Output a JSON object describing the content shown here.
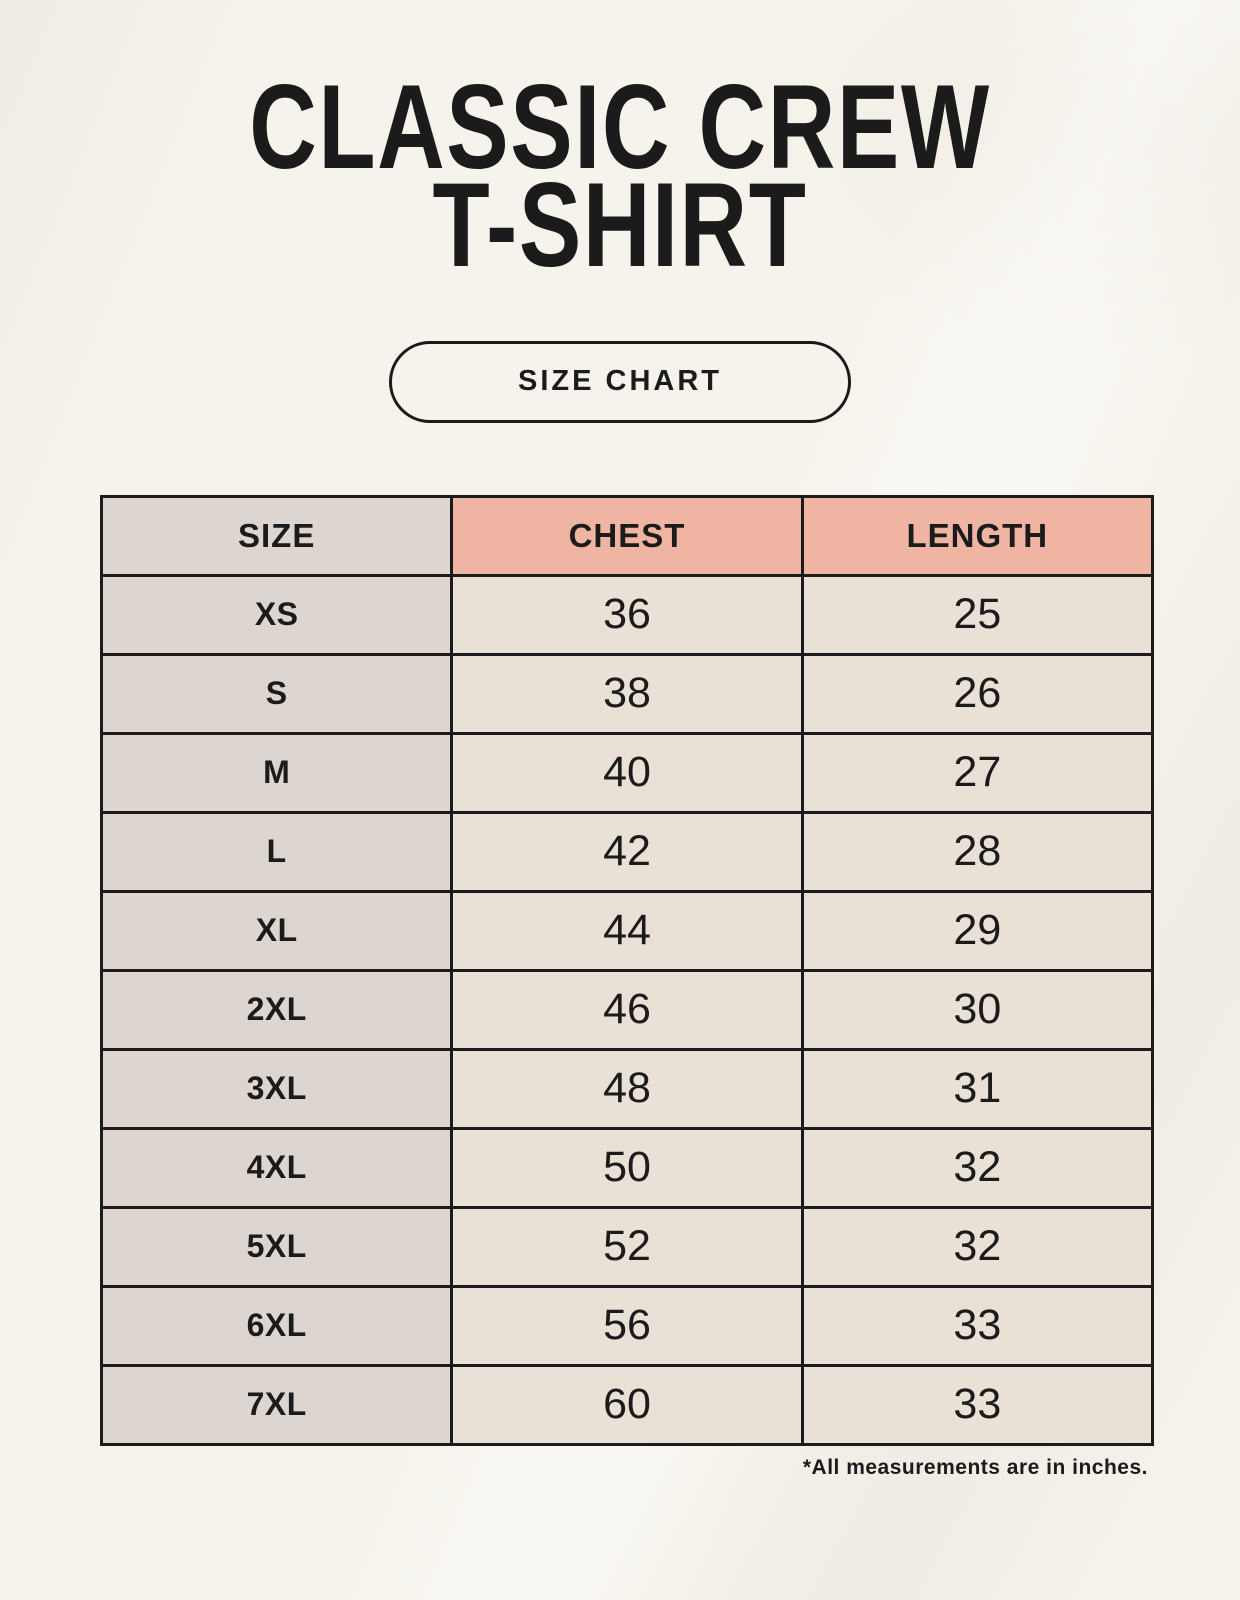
{
  "header": {
    "title_line1": "CLASSIC CREW",
    "title_line2": "T-SHIRT",
    "size_chart_label": "SIZE CHART"
  },
  "table": {
    "columns": [
      "SIZE",
      "CHEST",
      "LENGTH"
    ],
    "rows": [
      {
        "size": "XS",
        "chest": "36",
        "length": "25"
      },
      {
        "size": "S",
        "chest": "38",
        "length": "26"
      },
      {
        "size": "M",
        "chest": "40",
        "length": "27"
      },
      {
        "size": "L",
        "chest": "42",
        "length": "28"
      },
      {
        "size": "XL",
        "chest": "44",
        "length": "29"
      },
      {
        "size": "2XL",
        "chest": "46",
        "length": "30"
      },
      {
        "size": "3XL",
        "chest": "48",
        "length": "31"
      },
      {
        "size": "4XL",
        "chest": "50",
        "length": "32"
      },
      {
        "size": "5XL",
        "chest": "52",
        "length": "32"
      },
      {
        "size": "6XL",
        "chest": "56",
        "length": "33"
      },
      {
        "size": "7XL",
        "chest": "60",
        "length": "33"
      }
    ]
  },
  "footer": {
    "note": "*All measurements are in inches."
  },
  "colors": {
    "background": "#f6f3ec",
    "accent_header_bg": "#f0b5a2",
    "size_column_bg": "#ddd5cf",
    "value_cell_bg": "#e9e1d6",
    "border": "#1b1b1b",
    "text": "#1b1b1b"
  }
}
